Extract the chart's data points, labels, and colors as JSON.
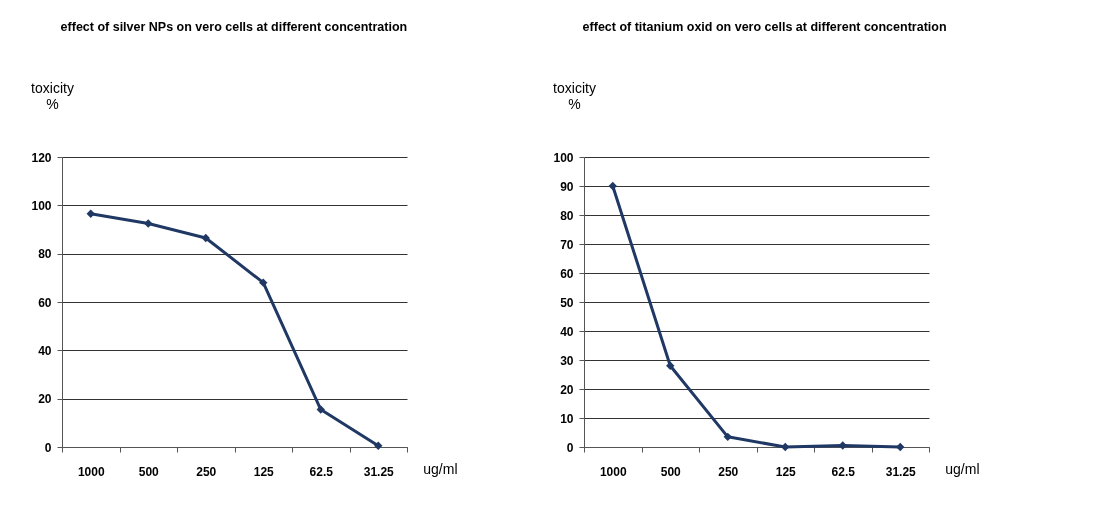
{
  "chart_data": [
    {
      "type": "line",
      "title": "effect of silver NPs on vero cells at different concentration",
      "xlabel": "ug/ml",
      "ylabel": "toxicity %",
      "categories": [
        "1000",
        "500",
        "250",
        "125",
        "62.5",
        "31.25"
      ],
      "series": [
        {
          "color": "#1f3864",
          "values": [
            96.5,
            92.5,
            86.5,
            68,
            15.5,
            0.5
          ]
        }
      ],
      "ylim": [
        0,
        120
      ],
      "yticks": [
        0,
        20,
        40,
        60,
        80,
        100,
        120
      ],
      "grid": "y",
      "marker": "diamond"
    },
    {
      "type": "line",
      "title": "effect of titanium oxid on vero cells at different concentration",
      "xlabel": "ug/ml",
      "ylabel": "toxicity %",
      "categories": [
        "1000",
        "500",
        "250",
        "125",
        "62.5",
        "31.25"
      ],
      "series": [
        {
          "color": "#1f3864",
          "values": [
            90,
            28,
            3.5,
            0,
            0.5,
            0
          ]
        }
      ],
      "ylim": [
        0,
        100
      ],
      "yticks": [
        0,
        10,
        20,
        30,
        40,
        50,
        60,
        70,
        80,
        90,
        100
      ],
      "grid": "y",
      "marker": "diamond"
    }
  ]
}
